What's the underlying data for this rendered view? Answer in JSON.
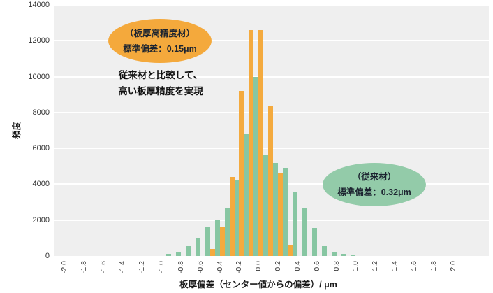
{
  "chart_data": {
    "type": "bar",
    "title": "",
    "xlabel": "板厚偏差（センター値からの偏差）/ μm",
    "ylabel": "頻度",
    "ylim": [
      0,
      14000
    ],
    "y_tick_step": 2000,
    "grid": true,
    "legend": "none",
    "plot_bg": "#efefef",
    "x_tick_labels": [
      "-2.0",
      "-1.8",
      "-1.6",
      "-1.4",
      "-1.2",
      "-1.0",
      "-0.8",
      "-0.6",
      "-0.4",
      "-0.2",
      "0.0",
      "0.2",
      "0.4",
      "0.6",
      "0.8",
      "1.0",
      "1.2",
      "1.4",
      "1.6",
      "1.8",
      "2.0"
    ],
    "x_axis_range": [
      -2.0,
      2.0
    ],
    "categories": [
      -0.9,
      -0.8,
      -0.7,
      -0.6,
      -0.5,
      -0.4,
      -0.3,
      -0.2,
      -0.1,
      0.0,
      0.1,
      0.2,
      0.3,
      0.4,
      0.5,
      0.6,
      0.7,
      0.8,
      0.9,
      1.0
    ],
    "series": [
      {
        "name": "従来材",
        "color": "#87c6a2",
        "values": [
          100,
          200,
          550,
          1000,
          1600,
          2000,
          2700,
          4200,
          6800,
          10000,
          5600,
          5200,
          4900,
          3600,
          2700,
          1550,
          550,
          200,
          100,
          50
        ]
      },
      {
        "name": "板厚高精度材",
        "color": "#f4aa3e",
        "values": [
          0,
          0,
          0,
          0,
          400,
          1600,
          4400,
          9200,
          12600,
          12600,
          8400,
          4600,
          600,
          0,
          0,
          0,
          0,
          0,
          0,
          0
        ]
      }
    ]
  },
  "annotations": {
    "callout_high_precision": {
      "line1": "（板厚高精度材）",
      "line2": "標準偏差：0.15μm",
      "color": "#f4a93c"
    },
    "note": {
      "line1": "従来材と比較して、",
      "line2": "高い板厚精度を実現"
    },
    "callout_conventional": {
      "line1": "（従来材）",
      "line2": "標準偏差：0.32μm",
      "color": "#93cba9"
    }
  }
}
